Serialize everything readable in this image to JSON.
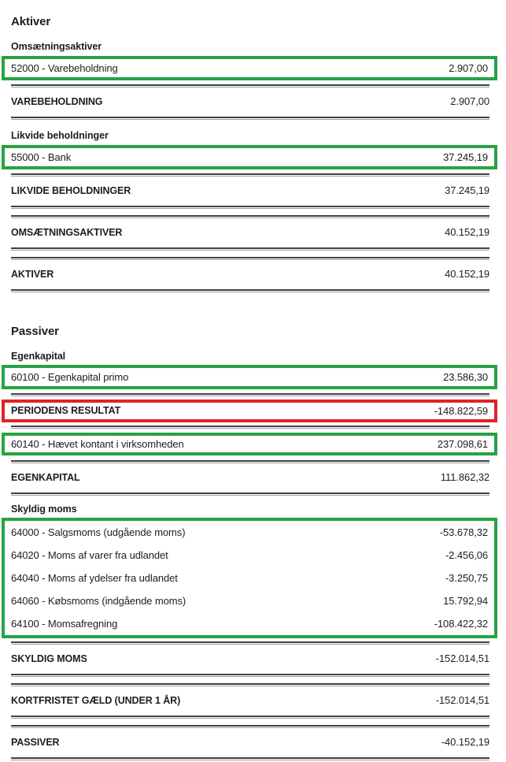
{
  "colors": {
    "highlight_green": "#26a344",
    "highlight_red": "#e12129",
    "divider_dark": "#424242",
    "divider_light": "#9e9e9e",
    "text": "#1d1d1d"
  },
  "aktiver": {
    "heading": "Aktiver",
    "omsaetningsaktiver": {
      "heading": "Omsætningsaktiver",
      "account_row": {
        "label": "52000 - Varebeholdning",
        "amount": "2.907,00",
        "highlight": "green"
      },
      "total": {
        "label": "VAREBEHOLDNING",
        "amount": "2.907,00"
      }
    },
    "likvide_beholdninger": {
      "heading": "Likvide beholdninger",
      "account_row": {
        "label": "55000 - Bank",
        "amount": "37.245,19",
        "highlight": "green"
      },
      "total": {
        "label": "LIKVIDE BEHOLDNINGER",
        "amount": "37.245,19"
      }
    },
    "total_omsaetningsaktiver": {
      "label": "OMSÆTNINGSAKTIVER",
      "amount": "40.152,19"
    },
    "total_aktiver": {
      "label": "AKTIVER",
      "amount": "40.152,19"
    }
  },
  "passiver": {
    "heading": "Passiver",
    "egenkapital": {
      "heading": "Egenkapital",
      "primo_row": {
        "label": "60100 - Egenkapital primo",
        "amount": "23.586,30",
        "highlight": "green"
      },
      "periodens_resultat": {
        "label": "PERIODENS RESULTAT",
        "amount": "-148.822,59",
        "highlight": "red"
      },
      "haevet_row": {
        "label": "60140 - Hævet kontant i virksomheden",
        "amount": "237.098,61",
        "highlight": "green"
      },
      "total": {
        "label": "EGENKAPITAL",
        "amount": "111.862,32"
      }
    },
    "skyldig_moms": {
      "heading": "Skyldig moms",
      "highlight": "green",
      "rows": [
        {
          "label": "64000 - Salgsmoms (udgående moms)",
          "amount": "-53.678,32"
        },
        {
          "label": "64020 - Moms af varer fra udlandet",
          "amount": "-2.456,06"
        },
        {
          "label": "64040 - Moms af ydelser fra udlandet",
          "amount": "-3.250,75"
        },
        {
          "label": "64060 - Købsmoms (indgående moms)",
          "amount": "15.792,94"
        },
        {
          "label": "64100 - Momsafregning",
          "amount": "-108.422,32"
        }
      ],
      "total": {
        "label": "SKYLDIG MOMS",
        "amount": "-152.014,51"
      }
    },
    "total_kortfristet_gaeld": {
      "label": "KORTFRISTET GÆLD (UNDER 1 ÅR)",
      "amount": "-152.014,51"
    },
    "total_passiver": {
      "label": "PASSIVER",
      "amount": "-40.152,19"
    }
  }
}
